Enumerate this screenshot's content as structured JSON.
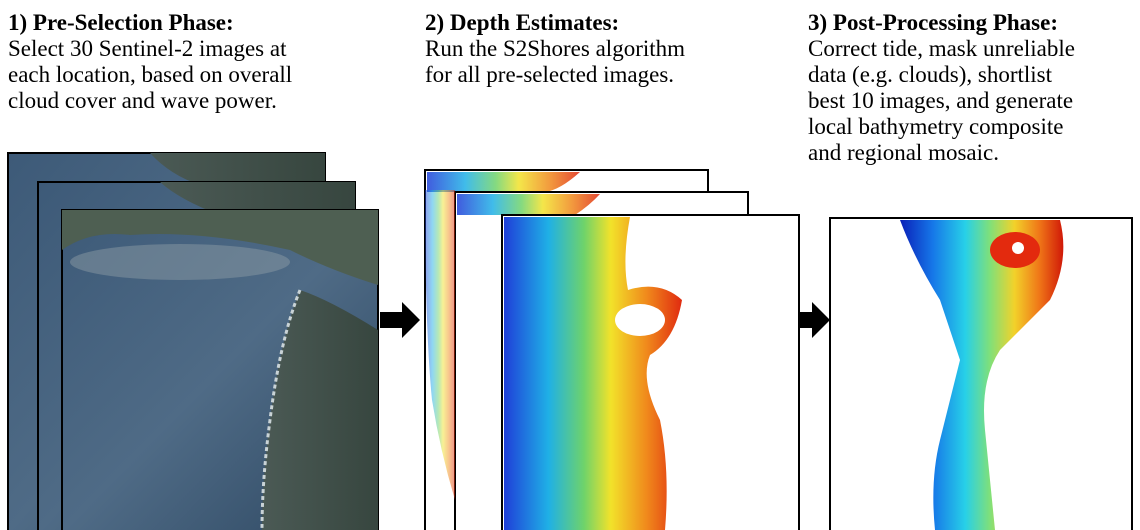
{
  "steps": [
    {
      "title": "1) Pre-Selection Phase:",
      "lines": [
        "Select 30 Sentinel-2 images at",
        "each location, based on overall",
        "cloud cover and wave power."
      ]
    },
    {
      "title": "2) Depth Estimates:",
      "lines": [
        "Run the S2Shores algorithm",
        "for all pre-selected images."
      ]
    },
    {
      "title": "3) Post-Processing Phase:",
      "lines": [
        "Correct tide, mask unreliable",
        "data (e.g. clouds), shortlist",
        "best 10 images, and generate",
        "local bathymetry composite",
        "and regional mosaic."
      ]
    }
  ]
}
